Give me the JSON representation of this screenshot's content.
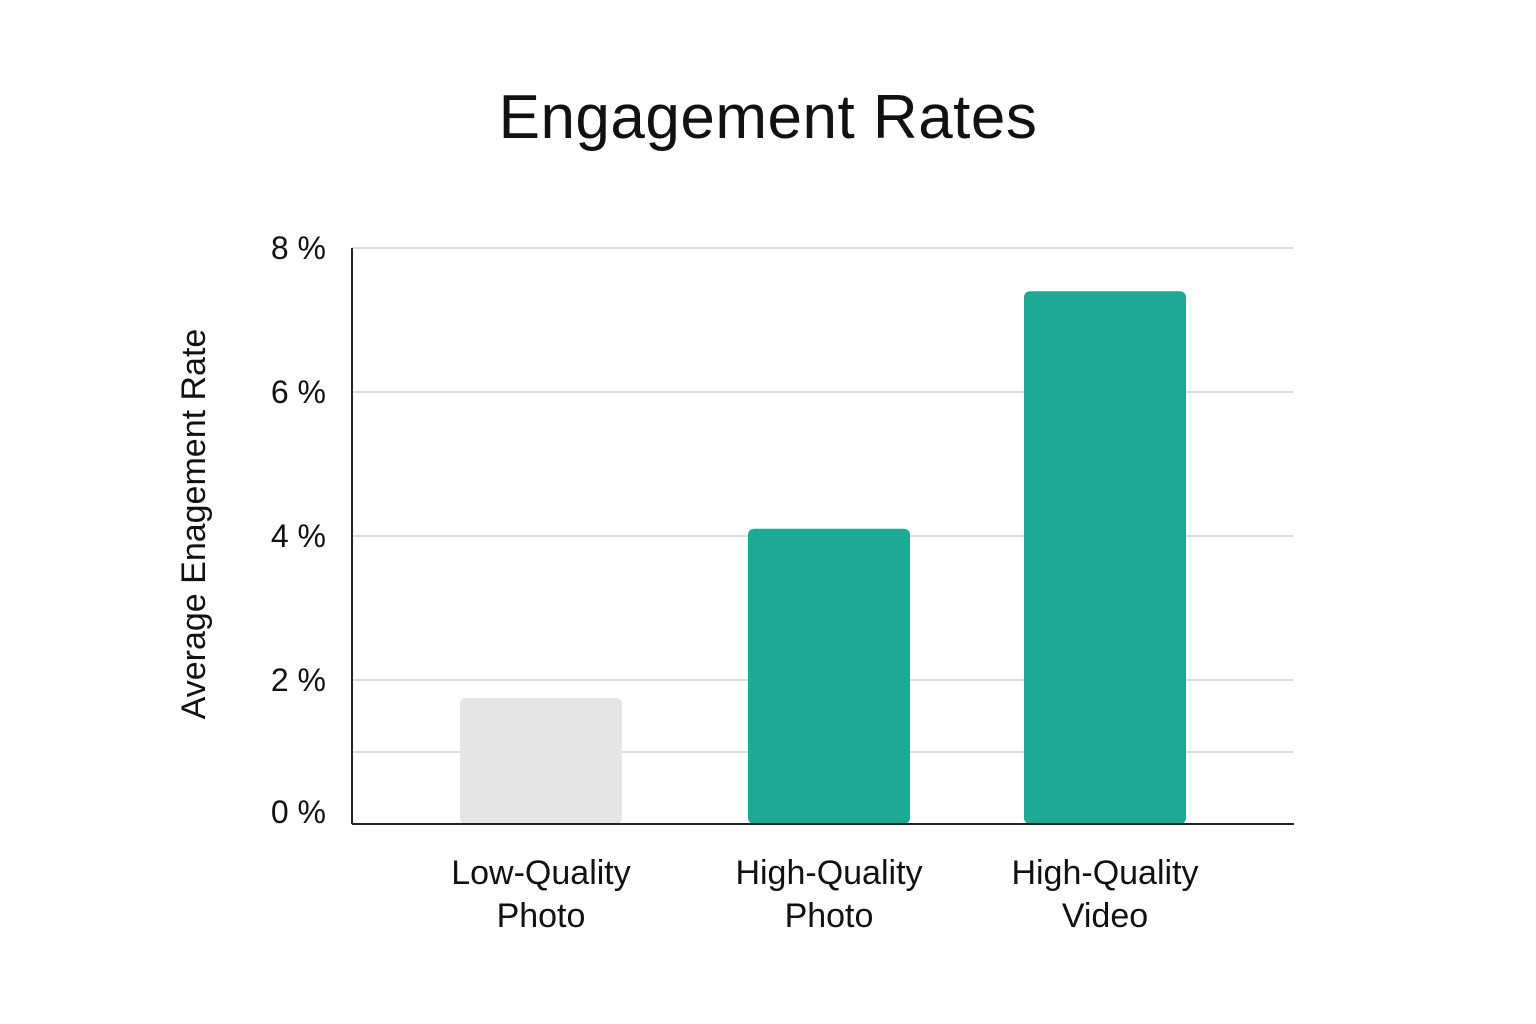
{
  "chart_data": {
    "type": "bar",
    "title": "Engagement Rates",
    "ylabel": "Average Enagement Rate",
    "xlabel": "",
    "categories": [
      [
        "Low-Quality",
        "Photo"
      ],
      [
        "High-Quality",
        "Photo"
      ],
      [
        "High-Quality",
        "Video"
      ]
    ],
    "values": [
      1.75,
      4.1,
      7.4
    ],
    "bar_colors": [
      "#e5e5e5",
      "#1fa893",
      "#1fa893"
    ],
    "ylim": [
      0,
      8
    ],
    "yticks": [
      {
        "value": 0,
        "label": "0 %"
      },
      {
        "value": 2,
        "label": "2 %"
      },
      {
        "value": 4,
        "label": "4 %"
      },
      {
        "value": 6,
        "label": "6 %"
      },
      {
        "value": 8,
        "label": "8 %"
      }
    ],
    "gridlines": [
      1,
      2,
      4,
      6,
      8
    ],
    "grid": true,
    "legend": "none"
  }
}
